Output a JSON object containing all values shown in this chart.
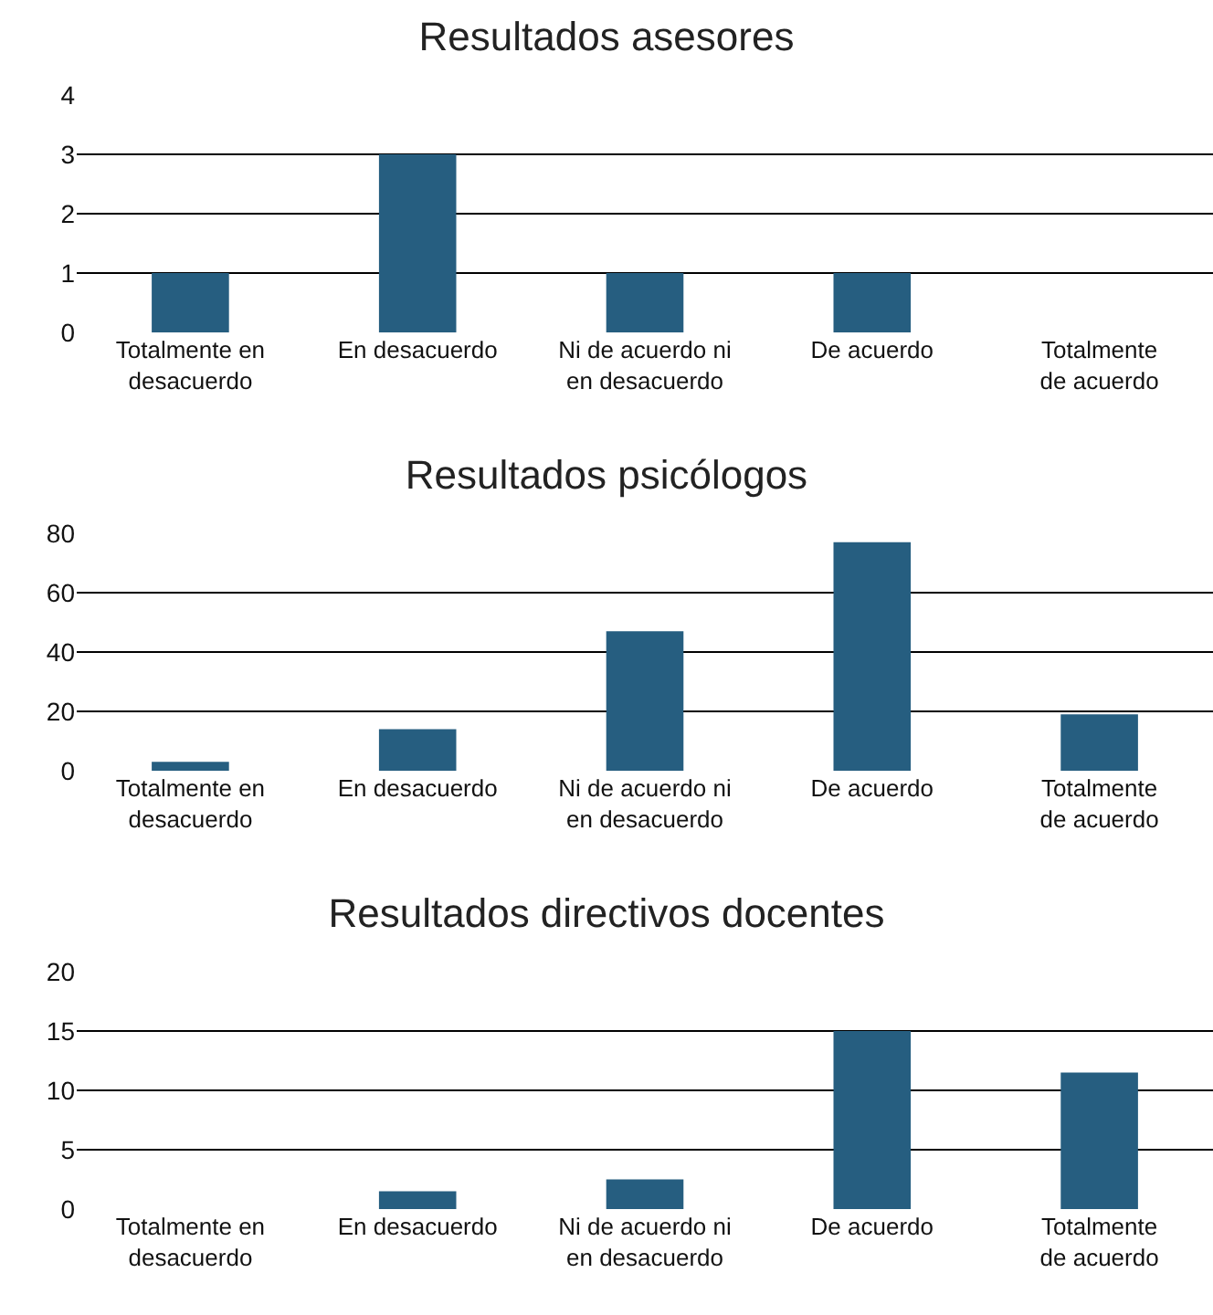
{
  "chart_data": [
    {
      "type": "bar",
      "title": "Resultados asesores",
      "categories": [
        "Totalmente en desacuerdo",
        "En desacuerdo",
        "Ni de acuerdo ni en desacuerdo",
        "De acuerdo",
        "Totalmente de acuerdo"
      ],
      "values": [
        1,
        3,
        1,
        1,
        0
      ],
      "color": "#265e80",
      "ylim": [
        0,
        4
      ],
      "yticks": [
        0,
        1,
        2,
        3,
        4
      ],
      "grid": "y"
    },
    {
      "type": "bar",
      "title": "Resultados psicólogos",
      "categories": [
        "Totalmente en desacuerdo",
        "En desacuerdo",
        "Ni de acuerdo ni en desacuerdo",
        "De acuerdo",
        "Totalmente de acuerdo"
      ],
      "values": [
        3,
        14,
        47,
        77,
        19
      ],
      "color": "#265e80",
      "ylim": [
        0,
        80
      ],
      "yticks": [
        0,
        20,
        40,
        60,
        80
      ],
      "grid": "y"
    },
    {
      "type": "bar",
      "title": "Resultados directivos docentes",
      "categories": [
        "Totalmente en desacuerdo",
        "En desacuerdo",
        "Ni de acuerdo ni en desacuerdo",
        "De acuerdo",
        "Totalmente de acuerdo"
      ],
      "values": [
        0,
        1.5,
        2.5,
        15,
        11.5
      ],
      "color": "#265e80",
      "ylim": [
        0,
        20
      ],
      "yticks": [
        0,
        5,
        10,
        15,
        20
      ],
      "grid": "y"
    }
  ]
}
